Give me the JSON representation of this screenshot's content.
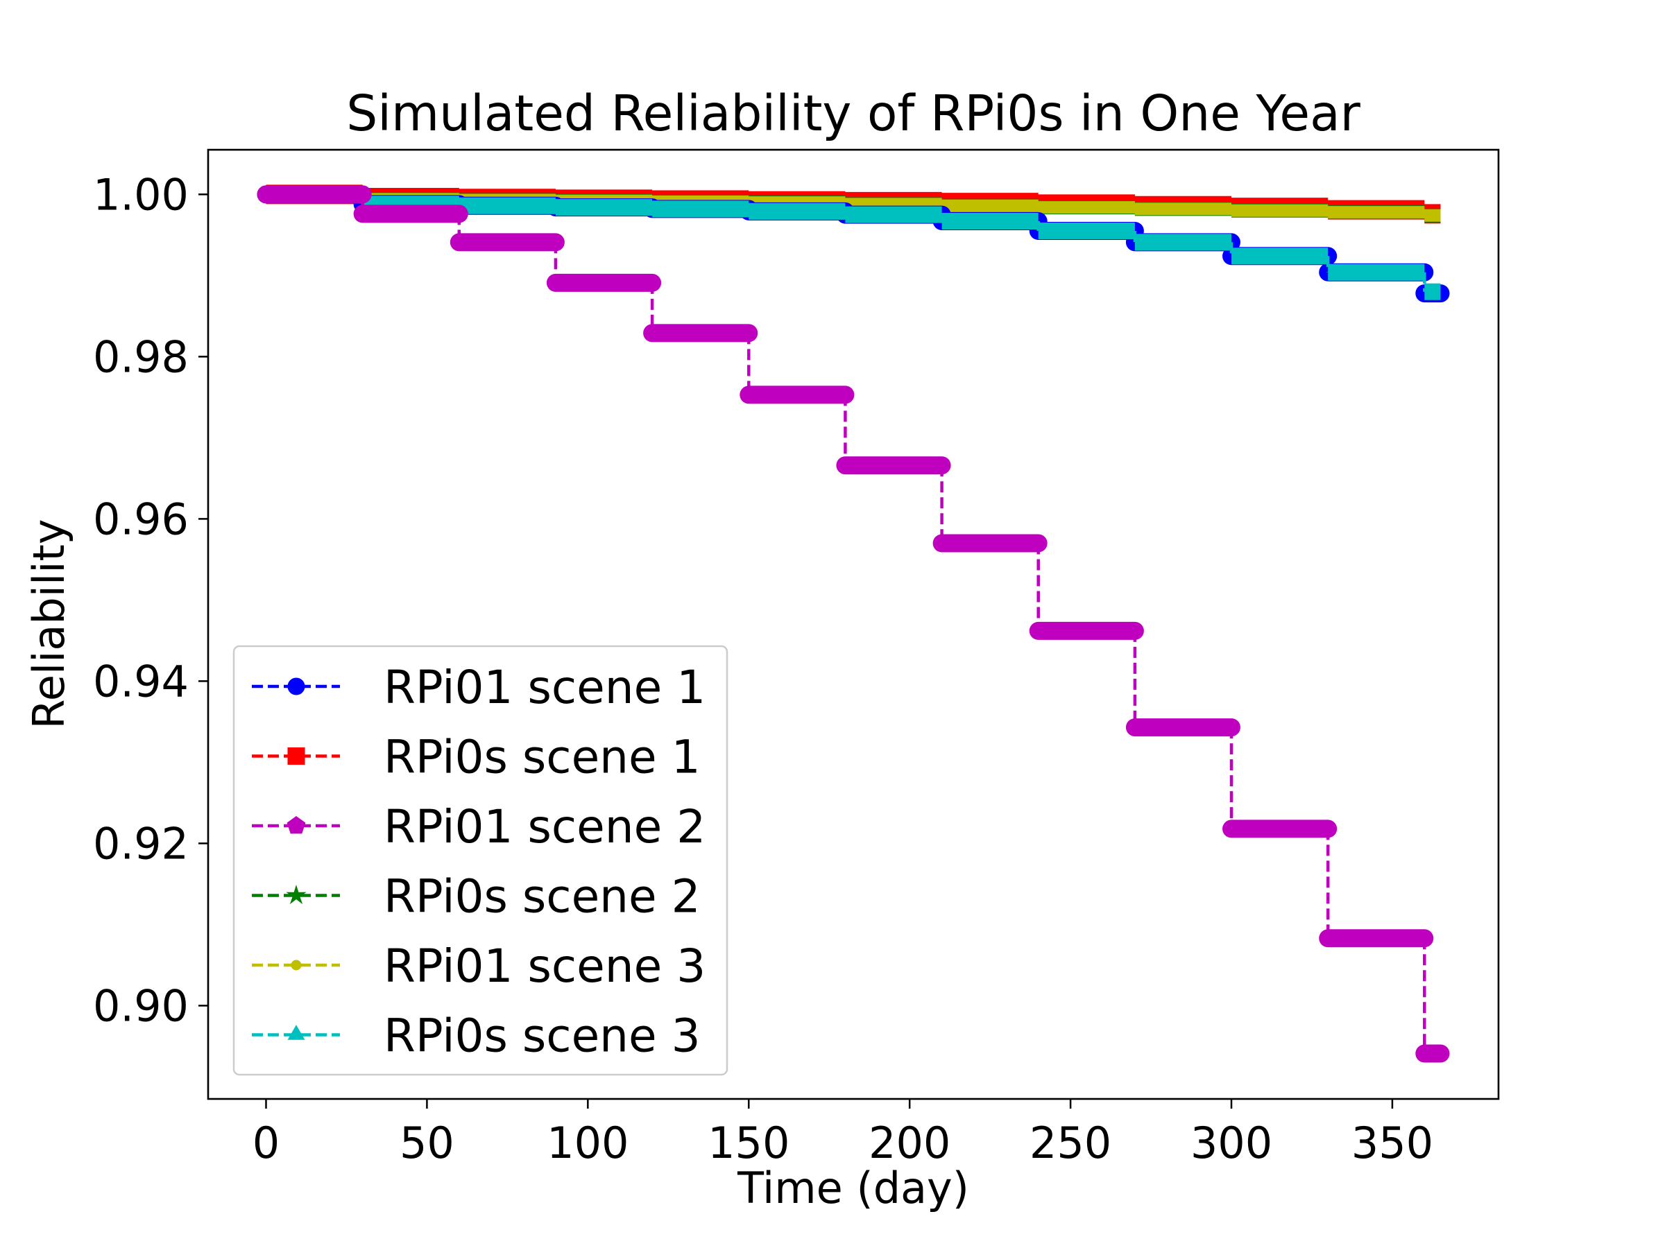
{
  "chart_data": {
    "type": "line",
    "title": "Simulated Reliability of RPi0s in One Year",
    "xlabel": "Time (day)",
    "ylabel": "Reliability",
    "xlim": [
      -18,
      383
    ],
    "ylim": [
      0.8885,
      1.0055
    ],
    "xticks": [
      0,
      50,
      100,
      150,
      200,
      250,
      300,
      350
    ],
    "xtick_labels": [
      "0",
      "50",
      "100",
      "150",
      "200",
      "250",
      "300",
      "350"
    ],
    "yticks": [
      0.9,
      0.92,
      0.94,
      0.96,
      0.98,
      1.0
    ],
    "ytick_labels": [
      "0.90",
      "0.92",
      "0.94",
      "0.96",
      "0.98",
      "1.00"
    ],
    "grid": false,
    "legend_position": "lower-left",
    "series": [
      {
        "name": "RPi01 scene 1",
        "color": "#0000ff",
        "marker": "circle",
        "x_step": 30,
        "x_max": 365,
        "levels": [
          1.0,
          0.9988,
          0.9986,
          0.9984,
          0.9982,
          0.9979,
          0.9975,
          0.9967,
          0.9955,
          0.9941,
          0.9924,
          0.9904,
          0.9878
        ]
      },
      {
        "name": "RPi0s scene 1",
        "color": "#ff0000",
        "marker": "square",
        "x_step": 30,
        "x_max": 365,
        "levels": [
          1.0,
          0.9996,
          0.9995,
          0.9994,
          0.9993,
          0.9992,
          0.9991,
          0.999,
          0.9988,
          0.9986,
          0.9984,
          0.9981,
          0.9976
        ]
      },
      {
        "name": "RPi01 scene 2",
        "color": "#bf00bf",
        "marker": "pentagon",
        "x_step": 30,
        "x_max": 365,
        "levels": [
          1.0,
          0.9976,
          0.9941,
          0.9891,
          0.9829,
          0.9753,
          0.9666,
          0.957,
          0.9462,
          0.9343,
          0.9218,
          0.9083,
          0.8941
        ]
      },
      {
        "name": "RPi0s scene 2",
        "color": "#008000",
        "marker": "star",
        "x_step": 30,
        "x_max": 365,
        "levels": [
          1.0,
          0.9994,
          0.9993,
          0.9992,
          0.9991,
          0.999,
          0.9988,
          0.9986,
          0.9984,
          0.9982,
          0.998,
          0.9978,
          0.9974
        ]
      },
      {
        "name": "RPi01 scene 3",
        "color": "#bfbf00",
        "marker": "point",
        "x_step": 30,
        "x_max": 365,
        "levels": [
          1.0,
          0.9994,
          0.9993,
          0.9992,
          0.9991,
          0.999,
          0.9988,
          0.9986,
          0.9984,
          0.9982,
          0.998,
          0.9978,
          0.9974
        ]
      },
      {
        "name": "RPi0s scene 3",
        "color": "#00bfbf",
        "marker": "triangle",
        "x_step": 30,
        "x_max": 365,
        "levels": [
          1.0,
          0.9988,
          0.9986,
          0.9984,
          0.9982,
          0.9979,
          0.9975,
          0.9967,
          0.9955,
          0.9941,
          0.9924,
          0.9904,
          0.988
        ]
      }
    ]
  }
}
